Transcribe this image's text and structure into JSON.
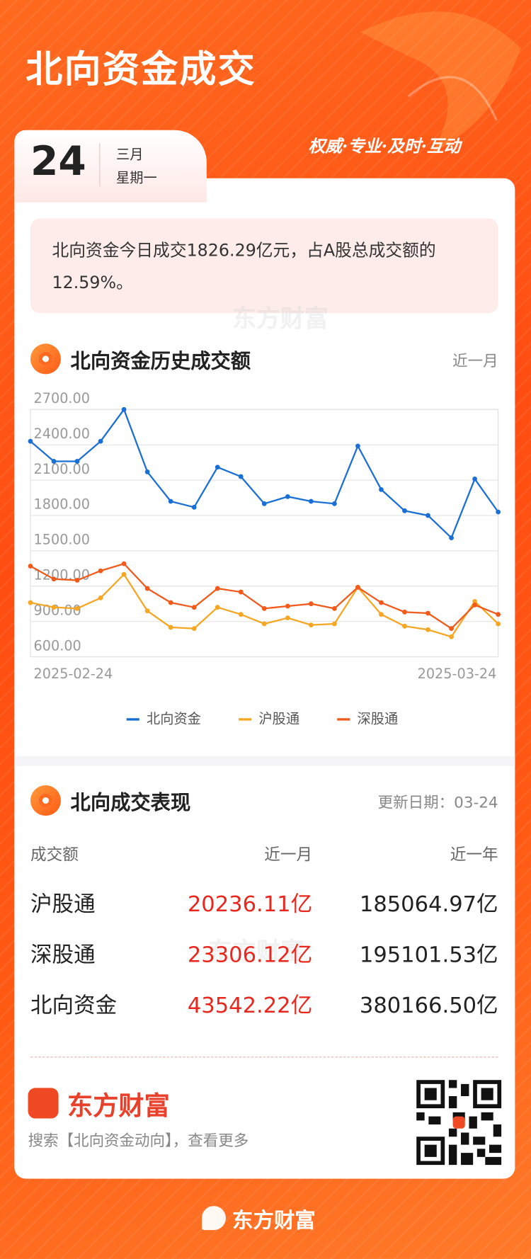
{
  "header": {
    "title": "北向资金成交",
    "slogan": "权威·专业·及时·互动"
  },
  "date": {
    "day": "24",
    "month": "三月",
    "weekday": "星期一"
  },
  "summary": "北向资金今日成交1826.29亿元，占A股总成交额的12.59%。",
  "watermark": "东方财富",
  "chart_section": {
    "title": "北向资金历史成交额",
    "period": "近一月"
  },
  "chart_data": {
    "type": "line",
    "categories": [
      "2025-02-24",
      null,
      null,
      null,
      null,
      null,
      null,
      null,
      null,
      null,
      null,
      null,
      null,
      null,
      null,
      null,
      null,
      null,
      null,
      null,
      "2025-03-24"
    ],
    "series": [
      {
        "name": "北向资金",
        "color": "#1a6fd6",
        "values": [
          2430,
          2260,
          2260,
          2430,
          2700,
          2170,
          1920,
          1870,
          2210,
          2130,
          1900,
          1960,
          1920,
          1900,
          2390,
          2020,
          1840,
          1800,
          1610,
          2110,
          1830
        ]
      },
      {
        "name": "沪股通",
        "color": "#f5a623",
        "values": [
          1060,
          1020,
          1010,
          1100,
          1300,
          990,
          850,
          840,
          1020,
          960,
          880,
          930,
          870,
          880,
          1190,
          960,
          860,
          830,
          770,
          1070,
          880
        ]
      },
      {
        "name": "深股通",
        "color": "#f15a1a",
        "values": [
          1370,
          1260,
          1250,
          1330,
          1390,
          1180,
          1060,
          1020,
          1180,
          1150,
          1010,
          1030,
          1050,
          1010,
          1190,
          1060,
          980,
          970,
          840,
          1040,
          960
        ]
      }
    ],
    "ylim": [
      600,
      2700
    ],
    "yticks": [
      {
        "value": 600,
        "label": "600.00"
      },
      {
        "value": 900,
        "label": "900.00"
      },
      {
        "value": 1200,
        "label": "1200.00"
      },
      {
        "value": 1500,
        "label": "1500.00"
      },
      {
        "value": 1800,
        "label": "1800.00"
      },
      {
        "value": 2100,
        "label": "2100.00"
      },
      {
        "value": 2400,
        "label": "2400.00"
      },
      {
        "value": 2700,
        "label": "2700.00"
      }
    ],
    "grid": true,
    "legend": "bottom"
  },
  "table_section": {
    "title": "北向成交表现",
    "updated": "更新日期：03-24"
  },
  "table": {
    "header": [
      "成交额",
      "近一月",
      "近一年"
    ],
    "rows": [
      [
        "沪股通",
        "20236.11亿",
        "185064.97亿"
      ],
      [
        "深股通",
        "23306.12亿",
        "195101.53亿"
      ],
      [
        "北向资金",
        "43542.22亿",
        "380166.50亿"
      ]
    ]
  },
  "footer": {
    "brand": "东方财富",
    "search": "搜索【北向资金动向】，查看更多",
    "bottom_brand": "东方财富"
  }
}
